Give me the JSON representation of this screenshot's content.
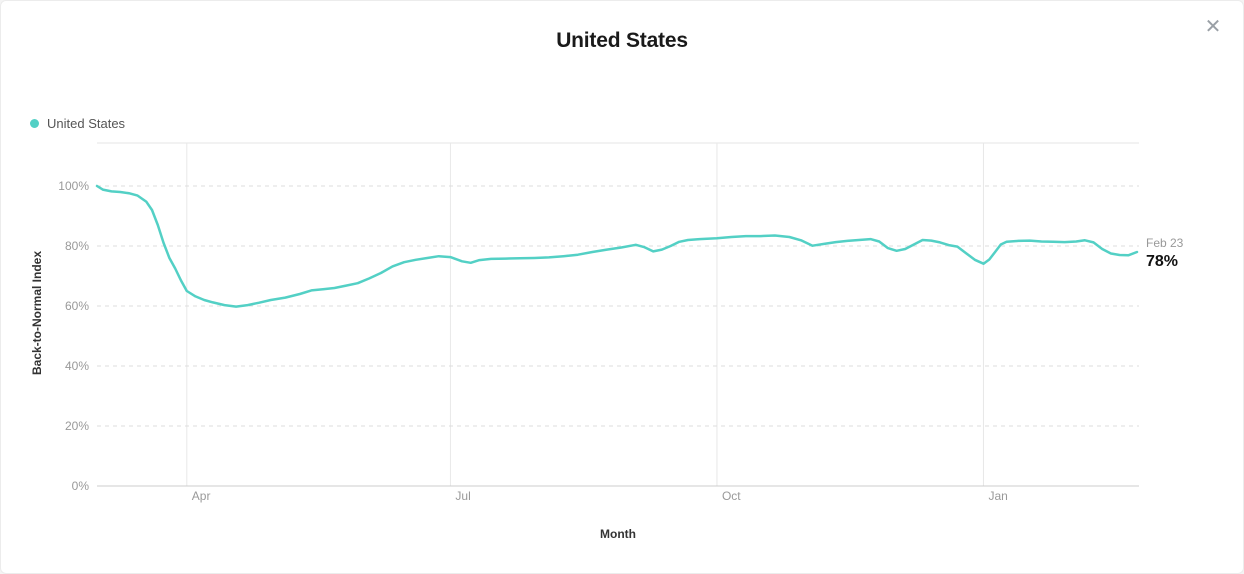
{
  "modal": {
    "title": "United States",
    "close_icon": "✕"
  },
  "legend": {
    "items": [
      {
        "label": "United States",
        "color": "#53D0C5"
      }
    ]
  },
  "annotation": {
    "date_label": "Feb 23",
    "value_label": "78%"
  },
  "colors": {
    "accent": "#53D0C5",
    "title_text": "#1a1a1a",
    "axis_title_text": "#333333",
    "tick_text": "#999999",
    "grid_dashed": "#dddddd",
    "grid_vertical": "#e8e8e8",
    "grid_top_border": "#e6e6e6",
    "axis_line": "#cccccc",
    "close_icon": "#9aa0a6"
  },
  "chart_data": {
    "type": "line",
    "title": "United States",
    "xlabel": "Month",
    "ylabel": "Back-to-Normal Index",
    "ylim": [
      0,
      100
    ],
    "grid": true,
    "legend_position": "top-left",
    "x_start_date": "2020-03-01",
    "x_end_date": "2021-02-23",
    "x_range_days": 359,
    "y_ticks": [
      {
        "label": "0%",
        "value": 0
      },
      {
        "label": "20%",
        "value": 20
      },
      {
        "label": "40%",
        "value": 40
      },
      {
        "label": "60%",
        "value": 60
      },
      {
        "label": "80%",
        "value": 80
      },
      {
        "label": "100%",
        "value": 100
      }
    ],
    "x_ticks": [
      {
        "label": "Apr",
        "date": "2020-04-01"
      },
      {
        "label": "Jul",
        "date": "2020-07-01"
      },
      {
        "label": "Oct",
        "date": "2020-10-01"
      },
      {
        "label": "Jan",
        "date": "2021-01-01"
      }
    ],
    "series": [
      {
        "name": "United States",
        "color": "#53D0C5",
        "end_label": {
          "date": "Feb 23",
          "value": "78%"
        },
        "points": [
          [
            "2020-03-01",
            100.0
          ],
          [
            "2020-03-03",
            98.8
          ],
          [
            "2020-03-06",
            98.2
          ],
          [
            "2020-03-09",
            98.0
          ],
          [
            "2020-03-12",
            97.6
          ],
          [
            "2020-03-15",
            96.8
          ],
          [
            "2020-03-18",
            94.8
          ],
          [
            "2020-03-20",
            92.0
          ],
          [
            "2020-03-22",
            87.0
          ],
          [
            "2020-03-24",
            81.0
          ],
          [
            "2020-03-26",
            76.0
          ],
          [
            "2020-03-28",
            72.5
          ],
          [
            "2020-03-30",
            68.5
          ],
          [
            "2020-04-01",
            65.0
          ],
          [
            "2020-04-04",
            63.2
          ],
          [
            "2020-04-07",
            62.0
          ],
          [
            "2020-04-10",
            61.2
          ],
          [
            "2020-04-14",
            60.3
          ],
          [
            "2020-04-18",
            59.8
          ],
          [
            "2020-04-22",
            60.3
          ],
          [
            "2020-04-26",
            61.1
          ],
          [
            "2020-04-30",
            62.0
          ],
          [
            "2020-05-05",
            62.8
          ],
          [
            "2020-05-10",
            64.0
          ],
          [
            "2020-05-14",
            65.2
          ],
          [
            "2020-05-18",
            65.6
          ],
          [
            "2020-05-22",
            66.0
          ],
          [
            "2020-05-26",
            66.8
          ],
          [
            "2020-05-30",
            67.6
          ],
          [
            "2020-06-03",
            69.2
          ],
          [
            "2020-06-07",
            71.0
          ],
          [
            "2020-06-11",
            73.2
          ],
          [
            "2020-06-15",
            74.6
          ],
          [
            "2020-06-19",
            75.4
          ],
          [
            "2020-06-23",
            76.0
          ],
          [
            "2020-06-27",
            76.6
          ],
          [
            "2020-07-01",
            76.3
          ],
          [
            "2020-07-05",
            74.9
          ],
          [
            "2020-07-08",
            74.4
          ],
          [
            "2020-07-11",
            75.3
          ],
          [
            "2020-07-15",
            75.7
          ],
          [
            "2020-07-20",
            75.8
          ],
          [
            "2020-07-25",
            75.9
          ],
          [
            "2020-07-30",
            76.0
          ],
          [
            "2020-08-04",
            76.2
          ],
          [
            "2020-08-09",
            76.6
          ],
          [
            "2020-08-14",
            77.1
          ],
          [
            "2020-08-19",
            78.0
          ],
          [
            "2020-08-24",
            78.8
          ],
          [
            "2020-08-29",
            79.5
          ],
          [
            "2020-09-03",
            80.4
          ],
          [
            "2020-09-06",
            79.6
          ],
          [
            "2020-09-09",
            78.2
          ],
          [
            "2020-09-12",
            78.8
          ],
          [
            "2020-09-15",
            80.0
          ],
          [
            "2020-09-18",
            81.4
          ],
          [
            "2020-09-21",
            82.0
          ],
          [
            "2020-09-25",
            82.3
          ],
          [
            "2020-10-01",
            82.6
          ],
          [
            "2020-10-06",
            83.0
          ],
          [
            "2020-10-11",
            83.3
          ],
          [
            "2020-10-16",
            83.3
          ],
          [
            "2020-10-21",
            83.5
          ],
          [
            "2020-10-26",
            83.0
          ],
          [
            "2020-10-30",
            81.9
          ],
          [
            "2020-11-03",
            80.1
          ],
          [
            "2020-11-07",
            80.7
          ],
          [
            "2020-11-11",
            81.3
          ],
          [
            "2020-11-15",
            81.7
          ],
          [
            "2020-11-19",
            82.0
          ],
          [
            "2020-11-23",
            82.3
          ],
          [
            "2020-11-26",
            81.5
          ],
          [
            "2020-11-29",
            79.3
          ],
          [
            "2020-12-02",
            78.4
          ],
          [
            "2020-12-05",
            79.0
          ],
          [
            "2020-12-08",
            80.5
          ],
          [
            "2020-12-11",
            82.0
          ],
          [
            "2020-12-14",
            81.8
          ],
          [
            "2020-12-17",
            81.2
          ],
          [
            "2020-12-20",
            80.3
          ],
          [
            "2020-12-23",
            79.8
          ],
          [
            "2020-12-26",
            77.6
          ],
          [
            "2020-12-29",
            75.4
          ],
          [
            "2021-01-01",
            74.1
          ],
          [
            "2021-01-03",
            75.5
          ],
          [
            "2021-01-05",
            78.0
          ],
          [
            "2021-01-07",
            80.5
          ],
          [
            "2021-01-09",
            81.4
          ],
          [
            "2021-01-13",
            81.7
          ],
          [
            "2021-01-17",
            81.8
          ],
          [
            "2021-01-21",
            81.5
          ],
          [
            "2021-01-25",
            81.4
          ],
          [
            "2021-01-29",
            81.3
          ],
          [
            "2021-02-02",
            81.5
          ],
          [
            "2021-02-05",
            81.9
          ],
          [
            "2021-02-08",
            81.2
          ],
          [
            "2021-02-11",
            79.0
          ],
          [
            "2021-02-14",
            77.5
          ],
          [
            "2021-02-17",
            77.0
          ],
          [
            "2021-02-20",
            76.9
          ],
          [
            "2021-02-23",
            78.0
          ]
        ]
      }
    ]
  }
}
